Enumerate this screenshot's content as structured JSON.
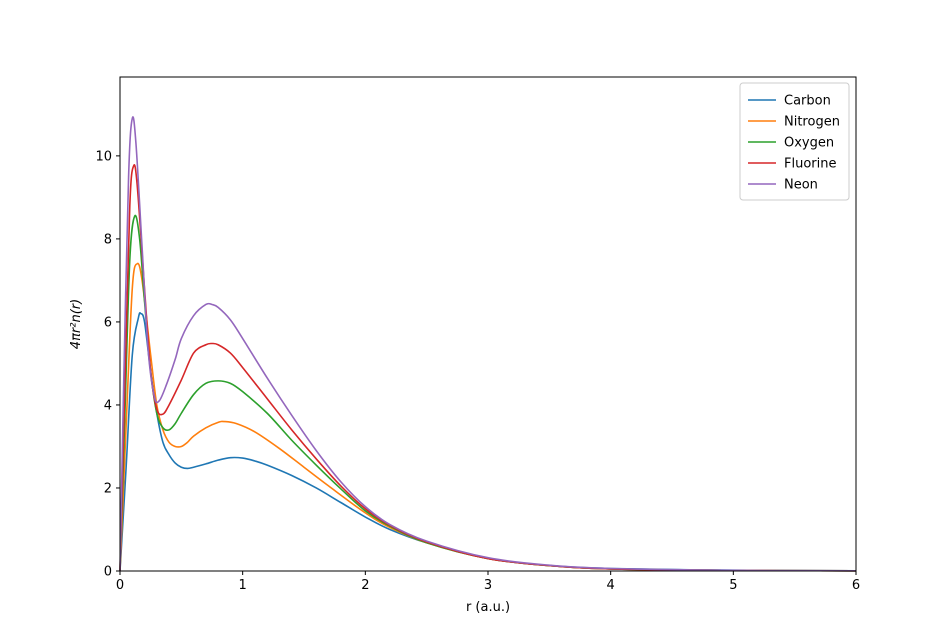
{
  "chart_data": {
    "type": "line",
    "xlabel": "r (a.u.)",
    "ylabel": "4πr²n(r)",
    "xlim": [
      0,
      6
    ],
    "ylim": [
      0,
      11.9
    ],
    "xticks": [
      0,
      1,
      2,
      3,
      4,
      5,
      6
    ],
    "yticks": [
      0,
      2,
      4,
      6,
      8,
      10
    ],
    "legend": {
      "position": "top-right"
    },
    "grid": false,
    "series": [
      {
        "name": "Carbon",
        "color": "#1f77b4",
        "points": [
          [
            0,
            0
          ],
          [
            0.05,
            2.5
          ],
          [
            0.1,
            5.2
          ],
          [
            0.15,
            6.1
          ],
          [
            0.17,
            6.2
          ],
          [
            0.2,
            6.0
          ],
          [
            0.25,
            4.8
          ],
          [
            0.3,
            3.8
          ],
          [
            0.35,
            3.1
          ],
          [
            0.4,
            2.8
          ],
          [
            0.45,
            2.6
          ],
          [
            0.5,
            2.5
          ],
          [
            0.55,
            2.47
          ],
          [
            0.6,
            2.5
          ],
          [
            0.7,
            2.58
          ],
          [
            0.8,
            2.67
          ],
          [
            0.9,
            2.73
          ],
          [
            1.0,
            2.72
          ],
          [
            1.1,
            2.65
          ],
          [
            1.2,
            2.55
          ],
          [
            1.4,
            2.3
          ],
          [
            1.6,
            2.0
          ],
          [
            1.8,
            1.65
          ],
          [
            2.0,
            1.3
          ],
          [
            2.2,
            1.0
          ],
          [
            2.5,
            0.68
          ],
          [
            3.0,
            0.3
          ],
          [
            3.5,
            0.13
          ],
          [
            4.0,
            0.06
          ],
          [
            5.0,
            0.02
          ],
          [
            6.0,
            0.005
          ]
        ]
      },
      {
        "name": "Nitrogen",
        "color": "#ff7f0e",
        "points": [
          [
            0,
            0
          ],
          [
            0.05,
            3.5
          ],
          [
            0.1,
            6.8
          ],
          [
            0.14,
            7.4
          ],
          [
            0.18,
            7.0
          ],
          [
            0.25,
            5.2
          ],
          [
            0.3,
            4.0
          ],
          [
            0.35,
            3.4
          ],
          [
            0.4,
            3.1
          ],
          [
            0.45,
            3.0
          ],
          [
            0.5,
            3.0
          ],
          [
            0.55,
            3.1
          ],
          [
            0.6,
            3.25
          ],
          [
            0.7,
            3.45
          ],
          [
            0.8,
            3.58
          ],
          [
            0.85,
            3.6
          ],
          [
            0.95,
            3.55
          ],
          [
            1.1,
            3.35
          ],
          [
            1.3,
            2.95
          ],
          [
            1.5,
            2.5
          ],
          [
            1.7,
            2.05
          ],
          [
            2.0,
            1.4
          ],
          [
            2.2,
            1.05
          ],
          [
            2.5,
            0.68
          ],
          [
            3.0,
            0.3
          ],
          [
            3.5,
            0.13
          ],
          [
            4.0,
            0.05
          ],
          [
            5.0,
            0.015
          ],
          [
            6.0,
            0.004
          ]
        ]
      },
      {
        "name": "Oxygen",
        "color": "#2ca02c",
        "points": [
          [
            0,
            0
          ],
          [
            0.04,
            3.8
          ],
          [
            0.08,
            7.5
          ],
          [
            0.12,
            8.55
          ],
          [
            0.16,
            8.0
          ],
          [
            0.2,
            6.5
          ],
          [
            0.25,
            4.8
          ],
          [
            0.3,
            3.8
          ],
          [
            0.35,
            3.45
          ],
          [
            0.4,
            3.4
          ],
          [
            0.45,
            3.55
          ],
          [
            0.5,
            3.8
          ],
          [
            0.6,
            4.25
          ],
          [
            0.7,
            4.52
          ],
          [
            0.8,
            4.58
          ],
          [
            0.9,
            4.52
          ],
          [
            1.0,
            4.32
          ],
          [
            1.2,
            3.8
          ],
          [
            1.4,
            3.15
          ],
          [
            1.6,
            2.55
          ],
          [
            1.8,
            1.98
          ],
          [
            2.0,
            1.45
          ],
          [
            2.2,
            1.08
          ],
          [
            2.5,
            0.68
          ],
          [
            3.0,
            0.3
          ],
          [
            3.5,
            0.13
          ],
          [
            4.0,
            0.05
          ],
          [
            5.0,
            0.015
          ],
          [
            6.0,
            0.004
          ]
        ]
      },
      {
        "name": "Fluorine",
        "color": "#d62728",
        "points": [
          [
            0,
            0
          ],
          [
            0.04,
            4.5
          ],
          [
            0.08,
            8.8
          ],
          [
            0.11,
            9.75
          ],
          [
            0.14,
            9.3
          ],
          [
            0.2,
            6.8
          ],
          [
            0.25,
            4.8
          ],
          [
            0.3,
            3.9
          ],
          [
            0.35,
            3.78
          ],
          [
            0.4,
            4.0
          ],
          [
            0.5,
            4.6
          ],
          [
            0.6,
            5.25
          ],
          [
            0.7,
            5.45
          ],
          [
            0.75,
            5.48
          ],
          [
            0.8,
            5.45
          ],
          [
            0.9,
            5.25
          ],
          [
            1.0,
            4.9
          ],
          [
            1.2,
            4.15
          ],
          [
            1.4,
            3.4
          ],
          [
            1.6,
            2.7
          ],
          [
            1.8,
            2.05
          ],
          [
            2.0,
            1.5
          ],
          [
            2.2,
            1.1
          ],
          [
            2.5,
            0.7
          ],
          [
            3.0,
            0.3
          ],
          [
            3.5,
            0.13
          ],
          [
            4.0,
            0.05
          ],
          [
            5.0,
            0.015
          ],
          [
            6.0,
            0.004
          ]
        ]
      },
      {
        "name": "Neon",
        "color": "#9467bd",
        "points": [
          [
            0,
            0
          ],
          [
            0.03,
            4.5
          ],
          [
            0.07,
            9.5
          ],
          [
            0.1,
            10.9
          ],
          [
            0.13,
            10.3
          ],
          [
            0.18,
            7.8
          ],
          [
            0.23,
            5.3
          ],
          [
            0.28,
            4.2
          ],
          [
            0.32,
            4.1
          ],
          [
            0.38,
            4.5
          ],
          [
            0.45,
            5.1
          ],
          [
            0.5,
            5.6
          ],
          [
            0.6,
            6.15
          ],
          [
            0.7,
            6.42
          ],
          [
            0.75,
            6.42
          ],
          [
            0.8,
            6.35
          ],
          [
            0.9,
            6.05
          ],
          [
            1.0,
            5.6
          ],
          [
            1.2,
            4.65
          ],
          [
            1.4,
            3.75
          ],
          [
            1.6,
            2.9
          ],
          [
            1.8,
            2.15
          ],
          [
            2.0,
            1.55
          ],
          [
            2.2,
            1.12
          ],
          [
            2.5,
            0.72
          ],
          [
            3.0,
            0.32
          ],
          [
            3.5,
            0.14
          ],
          [
            4.0,
            0.06
          ],
          [
            5.0,
            0.016
          ],
          [
            6.0,
            0.004
          ]
        ]
      }
    ]
  }
}
